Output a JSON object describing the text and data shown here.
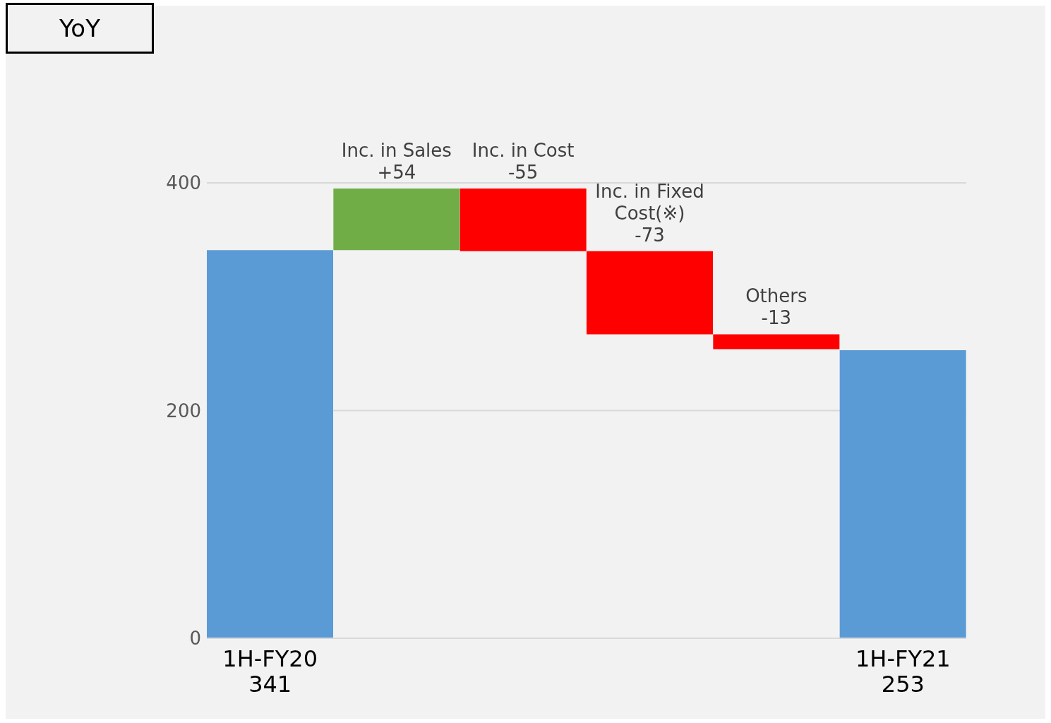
{
  "chart_data": {
    "type": "bar",
    "title": "YoY",
    "categories": [
      "1H-FY20",
      "Inc. in Sales",
      "Inc. in Cost",
      "Inc. in Fixed Cost(※)",
      "Others",
      "1H-FY21"
    ],
    "values": [
      341,
      54,
      -55,
      -73,
      -13,
      253
    ],
    "base": [
      0,
      341,
      395,
      340,
      267,
      0
    ],
    "colors": [
      "#5b9bd5",
      "#70ad47",
      "#ff0000",
      "#ff0000",
      "#ff0000",
      "#5b9bd5"
    ],
    "value_labels": [
      "341",
      "+54",
      "-55",
      "-73",
      "-13",
      "253"
    ],
    "ylim": [
      0,
      400
    ],
    "yticks": [
      0,
      200,
      400
    ],
    "grid": "y"
  }
}
